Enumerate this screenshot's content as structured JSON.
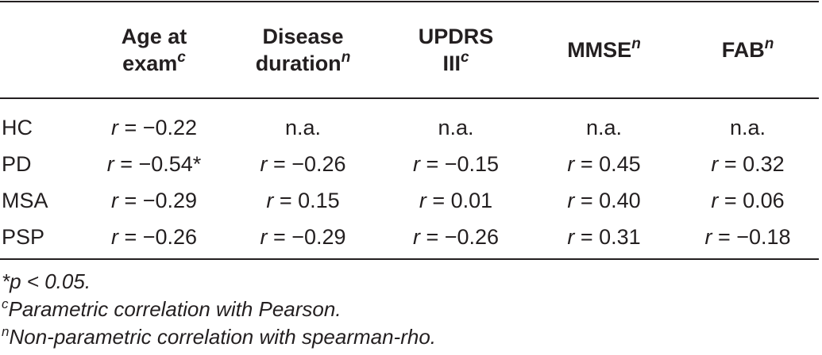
{
  "table": {
    "columns": [
      {
        "line1": "",
        "line2": "",
        "sup": ""
      },
      {
        "line1": "Age at",
        "line2": "exam",
        "sup": "c"
      },
      {
        "line1": "Disease",
        "line2": "duration",
        "sup": "n"
      },
      {
        "line1": "UPDRS",
        "line2": "III",
        "sup": "c"
      },
      {
        "line1": "MMSE",
        "line2": "",
        "sup": "n"
      },
      {
        "line1": "FAB",
        "line2": "",
        "sup": "n"
      }
    ],
    "rows": [
      {
        "label": "HC",
        "cells": [
          {
            "prefix": "r",
            "value": " = −0.22"
          },
          {
            "prefix": "",
            "value": "n.a."
          },
          {
            "prefix": "",
            "value": "n.a."
          },
          {
            "prefix": "",
            "value": "n.a."
          },
          {
            "prefix": "",
            "value": "n.a."
          }
        ]
      },
      {
        "label": "PD",
        "cells": [
          {
            "prefix": "r",
            "value": " = −0.54*"
          },
          {
            "prefix": "r",
            "value": " = −0.26"
          },
          {
            "prefix": "r",
            "value": " = −0.15"
          },
          {
            "prefix": "r",
            "value": " = 0.45"
          },
          {
            "prefix": "r",
            "value": " = 0.32"
          }
        ]
      },
      {
        "label": "MSA",
        "cells": [
          {
            "prefix": "r",
            "value": " = −0.29"
          },
          {
            "prefix": "r",
            "value": " = 0.15"
          },
          {
            "prefix": "r",
            "value": " = 0.01"
          },
          {
            "prefix": "r",
            "value": " = 0.40"
          },
          {
            "prefix": "r",
            "value": " = 0.06"
          }
        ]
      },
      {
        "label": "PSP",
        "cells": [
          {
            "prefix": "r",
            "value": " = −0.26"
          },
          {
            "prefix": "r",
            "value": " = −0.29"
          },
          {
            "prefix": "r",
            "value": " = −0.26"
          },
          {
            "prefix": "r",
            "value": " = 0.31"
          },
          {
            "prefix": "r",
            "value": " = −0.18"
          }
        ]
      }
    ]
  },
  "footnotes": [
    {
      "sup": "",
      "text": "*p < 0.05."
    },
    {
      "sup": "c",
      "text": "Parametric correlation with Pearson."
    },
    {
      "sup": "n",
      "text": "Non-parametric correlation with spearman-rho."
    }
  ]
}
